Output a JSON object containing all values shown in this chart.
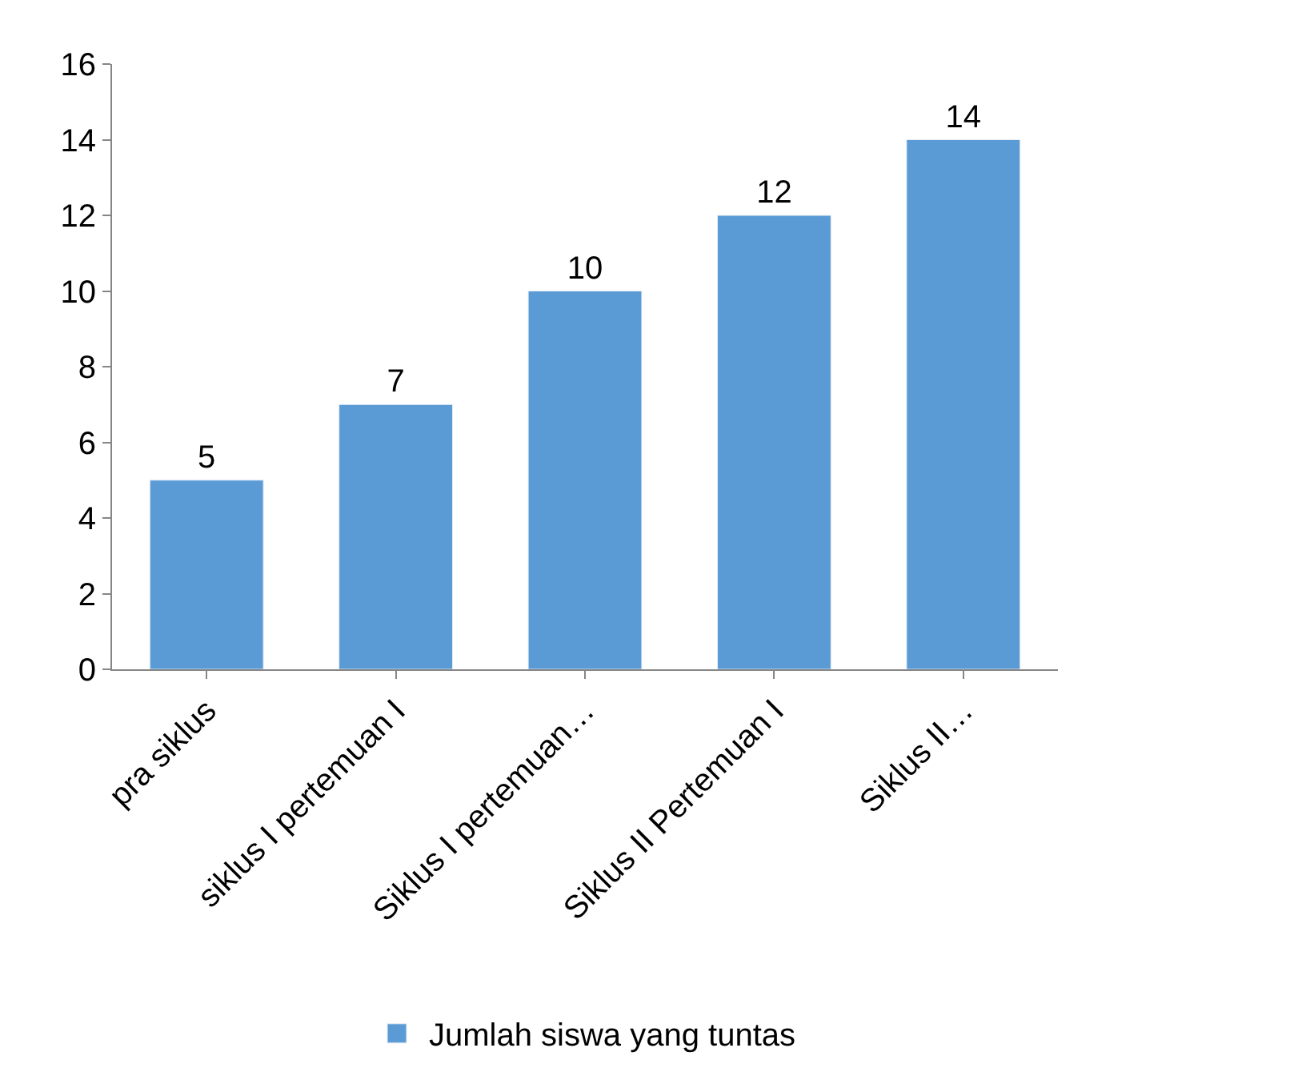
{
  "chart_data": {
    "type": "bar",
    "categories": [
      "pra siklus",
      "siklus I pertemuan I",
      "Siklus I pertemuan…",
      "Siklus II Pertemuan I",
      "Siklus II…"
    ],
    "series": [
      {
        "name": "Jumlah siswa yang tuntas",
        "color": "#5b9bd5",
        "values": [
          5,
          7,
          10,
          12,
          14
        ]
      }
    ],
    "ylim": [
      0,
      16
    ],
    "yticks": [
      0,
      2,
      4,
      6,
      8,
      10,
      12,
      14,
      16
    ],
    "grid": false,
    "legend": "bottom",
    "data_labels": true
  }
}
